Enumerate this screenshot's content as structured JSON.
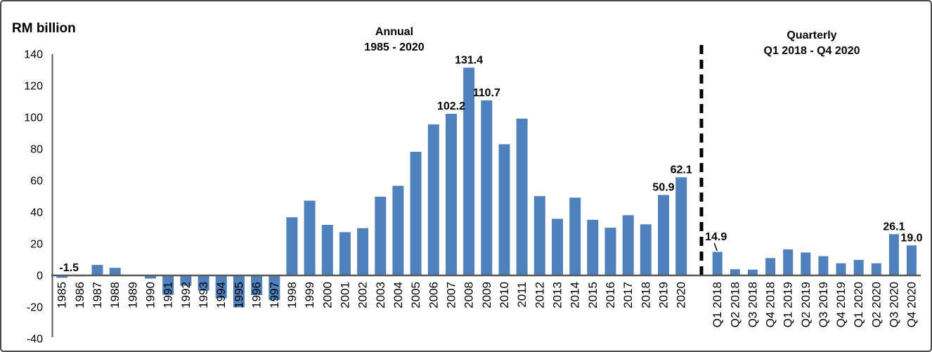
{
  "frame": {
    "unit_label": "RM billion"
  },
  "panels": {
    "annual": {
      "title": "Annual",
      "subtitle": "1985 - 2020"
    },
    "quarterly": {
      "title": "Quarterly",
      "subtitle": "Q1 2018 - Q4 2020"
    }
  },
  "chart_data": {
    "type": "bar",
    "title": "RM billion",
    "ylabel": "RM billion",
    "ylim": [
      -40,
      140
    ],
    "yticks": [
      140,
      120,
      100,
      80,
      60,
      40,
      20,
      0,
      -20,
      -40
    ],
    "grid": false,
    "legend": "none",
    "bar_color": "#4F81BD",
    "axis_color": "#595959",
    "divider_color": "#000000",
    "annual": {
      "categories": [
        "1985",
        "1986",
        "1987",
        "1988",
        "1989",
        "1990",
        "1991",
        "1992",
        "1993",
        "1994",
        "1995",
        "1996",
        "1997",
        "1998",
        "1999",
        "2000",
        "2001",
        "2002",
        "2003",
        "2004",
        "2005",
        "2006",
        "2007",
        "2008",
        "2009",
        "2010",
        "2011",
        "2012",
        "2013",
        "2014",
        "2015",
        "2016",
        "2017",
        "2018",
        "2019",
        "2020"
      ],
      "values": [
        -1.5,
        -0.6,
        6.6,
        4.8,
        -0.3,
        -2.0,
        -12.3,
        -6.6,
        -9.6,
        -14.5,
        -20.2,
        -12.5,
        -15.5,
        36.8,
        47.3,
        32.0,
        27.4,
        29.9,
        49.8,
        56.7,
        78.2,
        95.5,
        102.2,
        131.4,
        110.7,
        83.0,
        99.2,
        50.2,
        35.8,
        49.2,
        35.2,
        30.2,
        38.1,
        32.3,
        50.9,
        62.1
      ],
      "data_labels": [
        {
          "category": "1985",
          "text": "-1.5"
        },
        {
          "category": "2007",
          "text": "102.2"
        },
        {
          "category": "2008",
          "text": "131.4"
        },
        {
          "category": "2009",
          "text": "110.7"
        },
        {
          "category": "2019",
          "text": "50.9"
        },
        {
          "category": "2020",
          "text": "62.1"
        }
      ]
    },
    "quarterly": {
      "categories": [
        "Q1 2018",
        "Q2 2018",
        "Q3 2018",
        "Q4 2018",
        "Q1 2019",
        "Q2 2019",
        "Q3 2019",
        "Q4 2019",
        "Q1 2020",
        "Q2 2020",
        "Q3 2020",
        "Q4 2020"
      ],
      "values": [
        14.9,
        3.9,
        3.7,
        11.0,
        16.5,
        14.5,
        12.2,
        7.7,
        9.8,
        7.7,
        26.1,
        19.0
      ],
      "data_labels": [
        {
          "category": "Q1 2018",
          "text": "14.9",
          "leader_line": true
        },
        {
          "category": "Q3 2020",
          "text": "26.1"
        },
        {
          "category": "Q4 2020",
          "text": "19.0"
        }
      ]
    }
  }
}
